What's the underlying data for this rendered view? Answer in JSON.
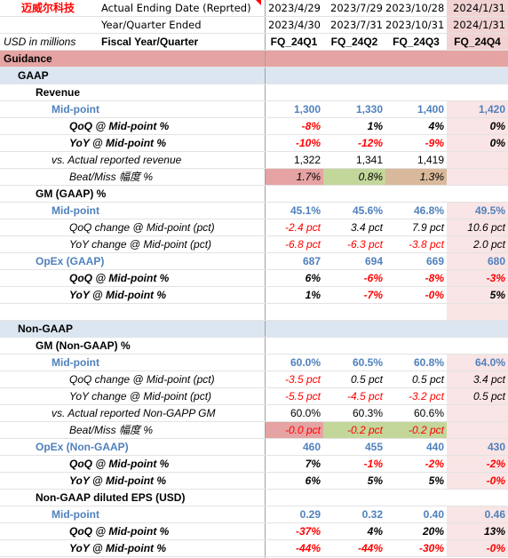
{
  "company": "迈威尔科技",
  "header_rows": [
    {
      "label": "Actual Ending Date (Reprted)",
      "values": [
        "2023/4/29",
        "2023/7/29",
        "2023/10/28",
        "2024/1/31"
      ]
    },
    {
      "label": "Year/Quarter Ended",
      "values": [
        "2023/4/30",
        "2023/7/31",
        "2023/10/31",
        "2024/1/31"
      ]
    }
  ],
  "units": "USD in millions",
  "fiscal_label": "Fiscal Year/Quarter",
  "quarters": [
    "FQ_24Q1",
    "FQ_24Q2",
    "FQ_24Q3",
    "FQ_24Q4"
  ],
  "sections": {
    "guidance": "Guidance",
    "gaap": "GAAP",
    "non_gaap": "Non-GAAP"
  },
  "gaap": {
    "revenue_title": "Revenue",
    "revenue_mid": {
      "label": "Mid-point",
      "values": [
        "1,300",
        "1,330",
        "1,400",
        "1,420"
      ]
    },
    "revenue_qoq": {
      "label": "QoQ @ Mid-point %",
      "values": [
        "-8%",
        "1%",
        "4%",
        "0%"
      ]
    },
    "revenue_yoy": {
      "label": "YoY @ Mid-point %",
      "values": [
        "-10%",
        "-12%",
        "-9%",
        "0%"
      ]
    },
    "revenue_actual": {
      "label": "vs. Actual reported revenue",
      "values": [
        "1,322",
        "1,341",
        "1,419",
        ""
      ]
    },
    "revenue_beat": {
      "label": "Beat/Miss 幅度 %",
      "values": [
        "1.7%",
        "0.8%",
        "1.3%",
        ""
      ]
    },
    "gm_title": "GM (GAAP) %",
    "gm_mid": {
      "label": "Mid-point",
      "values": [
        "45.1%",
        "45.6%",
        "46.8%",
        "49.5%"
      ]
    },
    "gm_qoq": {
      "label": "QoQ change @ Mid-point (pct)",
      "values": [
        "-2.4 pct",
        "3.4 pct",
        "7.9 pct",
        "10.6 pct"
      ]
    },
    "gm_yoy": {
      "label": "YoY change @ Mid-point (pct)",
      "values": [
        "-6.8 pct",
        "-6.3 pct",
        "-3.8 pct",
        "2.0 pct"
      ]
    },
    "opex_mid": {
      "label": "OpEx (GAAP)",
      "values": [
        "687",
        "694",
        "669",
        "680"
      ]
    },
    "opex_qoq": {
      "label": "QoQ @ Mid-point %",
      "values": [
        "6%",
        "-6%",
        "-8%",
        "-3%"
      ]
    },
    "opex_yoy": {
      "label": "YoY @ Mid-point %",
      "values": [
        "1%",
        "-7%",
        "-0%",
        "5%"
      ]
    }
  },
  "non_gaap": {
    "gm_title": "GM (Non-GAAP) %",
    "gm_mid": {
      "label": "Mid-point",
      "values": [
        "60.0%",
        "60.5%",
        "60.8%",
        "64.0%"
      ]
    },
    "gm_qoq": {
      "label": "QoQ change @ Mid-point (pct)",
      "values": [
        "-3.5 pct",
        "0.5 pct",
        "0.5 pct",
        "3.4 pct"
      ]
    },
    "gm_yoy": {
      "label": "YoY change @ Mid-point (pct)",
      "values": [
        "-5.5 pct",
        "-4.5 pct",
        "-3.2 pct",
        "0.5 pct"
      ]
    },
    "gm_actual": {
      "label": "vs. Actual reported Non-GAPP GM",
      "values": [
        "60.0%",
        "60.3%",
        "60.6%",
        ""
      ]
    },
    "gm_beat": {
      "label": "Beat/Miss 幅度 %",
      "values": [
        "-0.0 pct",
        "-0.2 pct",
        "-0.2 pct",
        ""
      ]
    },
    "opex_mid": {
      "label": "OpEx (Non-GAAP)",
      "values": [
        "460",
        "455",
        "440",
        "430"
      ]
    },
    "opex_qoq": {
      "label": "QoQ @ Mid-point %",
      "values": [
        "7%",
        "-1%",
        "-2%",
        "-2%"
      ]
    },
    "opex_yoy": {
      "label": "YoY @ Mid-point %",
      "values": [
        "6%",
        "5%",
        "5%",
        "-0%"
      ]
    },
    "eps_title": "Non-GAAP diluted EPS (USD)",
    "eps_mid": {
      "label": "Mid-point",
      "values": [
        "0.29",
        "0.32",
        "0.40",
        "0.46"
      ]
    },
    "eps_qoq": {
      "label": "QoQ @ Mid-point %",
      "values": [
        "-37%",
        "4%",
        "20%",
        "13%"
      ]
    },
    "eps_yoy": {
      "label": "YoY @ Mid-point %",
      "values": [
        "-44%",
        "-44%",
        "-30%",
        "-0%"
      ]
    }
  }
}
